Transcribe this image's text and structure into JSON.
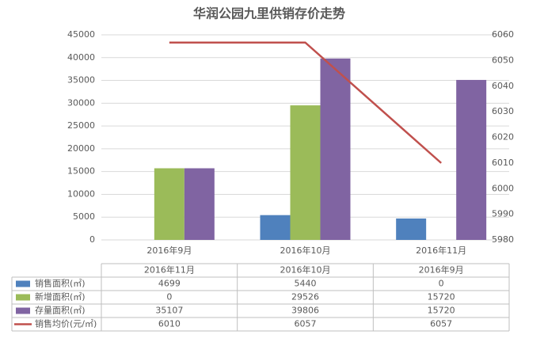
{
  "chart_data": {
    "type": "bar-line",
    "title": "华润公园九里供销存价走势",
    "categories": [
      "2016年9月",
      "2016年10月",
      "2016年11月"
    ],
    "series": [
      {
        "name": "销售面积(㎡)",
        "type": "bar",
        "color": "#4f81bd",
        "values": [
          0,
          5440,
          4699
        ]
      },
      {
        "name": "新增面积(㎡)",
        "type": "bar",
        "color": "#9bbb59",
        "values": [
          15720,
          29526,
          0
        ]
      },
      {
        "name": "存量面积(㎡)",
        "type": "bar",
        "color": "#8064a2",
        "values": [
          15720,
          39806,
          35107
        ]
      },
      {
        "name": "销售均价(元/㎡)",
        "type": "line",
        "axis": "y2",
        "color": "#c0504d",
        "values": [
          6057,
          6057,
          6010
        ]
      }
    ],
    "ylim": [
      0,
      45000
    ],
    "yticks": [
      0,
      5000,
      10000,
      15000,
      20000,
      25000,
      30000,
      35000,
      40000,
      45000
    ],
    "y2lim": [
      5980,
      6060
    ],
    "y2ticks": [
      5980,
      5990,
      6000,
      6010,
      6020,
      6030,
      6040,
      6050,
      6060
    ],
    "grid": true,
    "table": {
      "columns": [
        "2016年11月",
        "2016年10月",
        "2016年9月"
      ],
      "rows": [
        [
          4699,
          5440,
          0
        ],
        [
          0,
          29526,
          15720
        ],
        [
          35107,
          39806,
          15720
        ],
        [
          6010,
          6057,
          6057
        ]
      ]
    }
  }
}
